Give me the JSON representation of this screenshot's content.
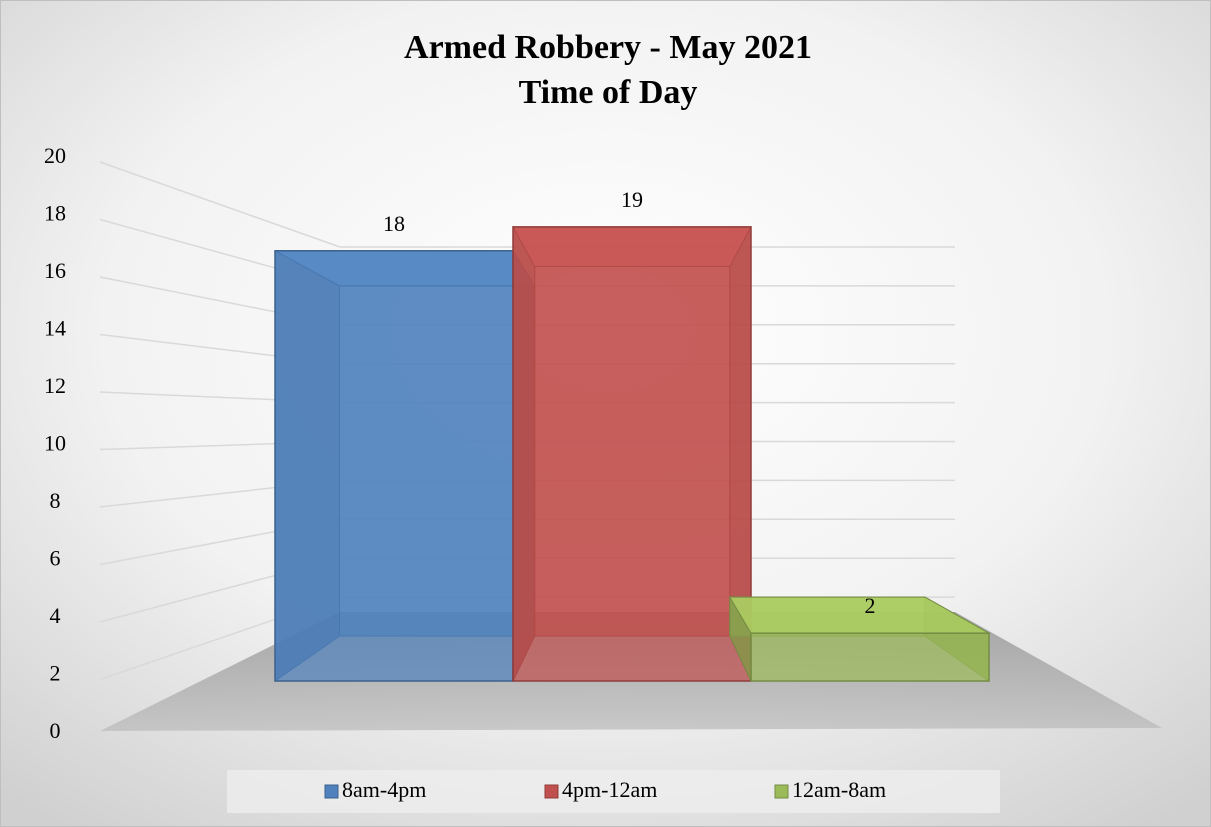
{
  "chart_data": {
    "type": "bar3d",
    "title": "Armed Robbery - May 2021",
    "subtitle": "Time of Day",
    "series": [
      {
        "name": "8am-4pm",
        "color": "#4f81bd",
        "values": [
          18
        ]
      },
      {
        "name": "4pm-12am",
        "color": "#c0504d",
        "values": [
          19
        ]
      },
      {
        "name": "12am-8am",
        "color": "#9bbb59",
        "values": [
          2
        ]
      }
    ],
    "ylim": [
      0,
      20
    ],
    "yticks": [
      0,
      2,
      4,
      6,
      8,
      10,
      12,
      14,
      16,
      18,
      20
    ],
    "grid": true,
    "legend": "bottom"
  }
}
